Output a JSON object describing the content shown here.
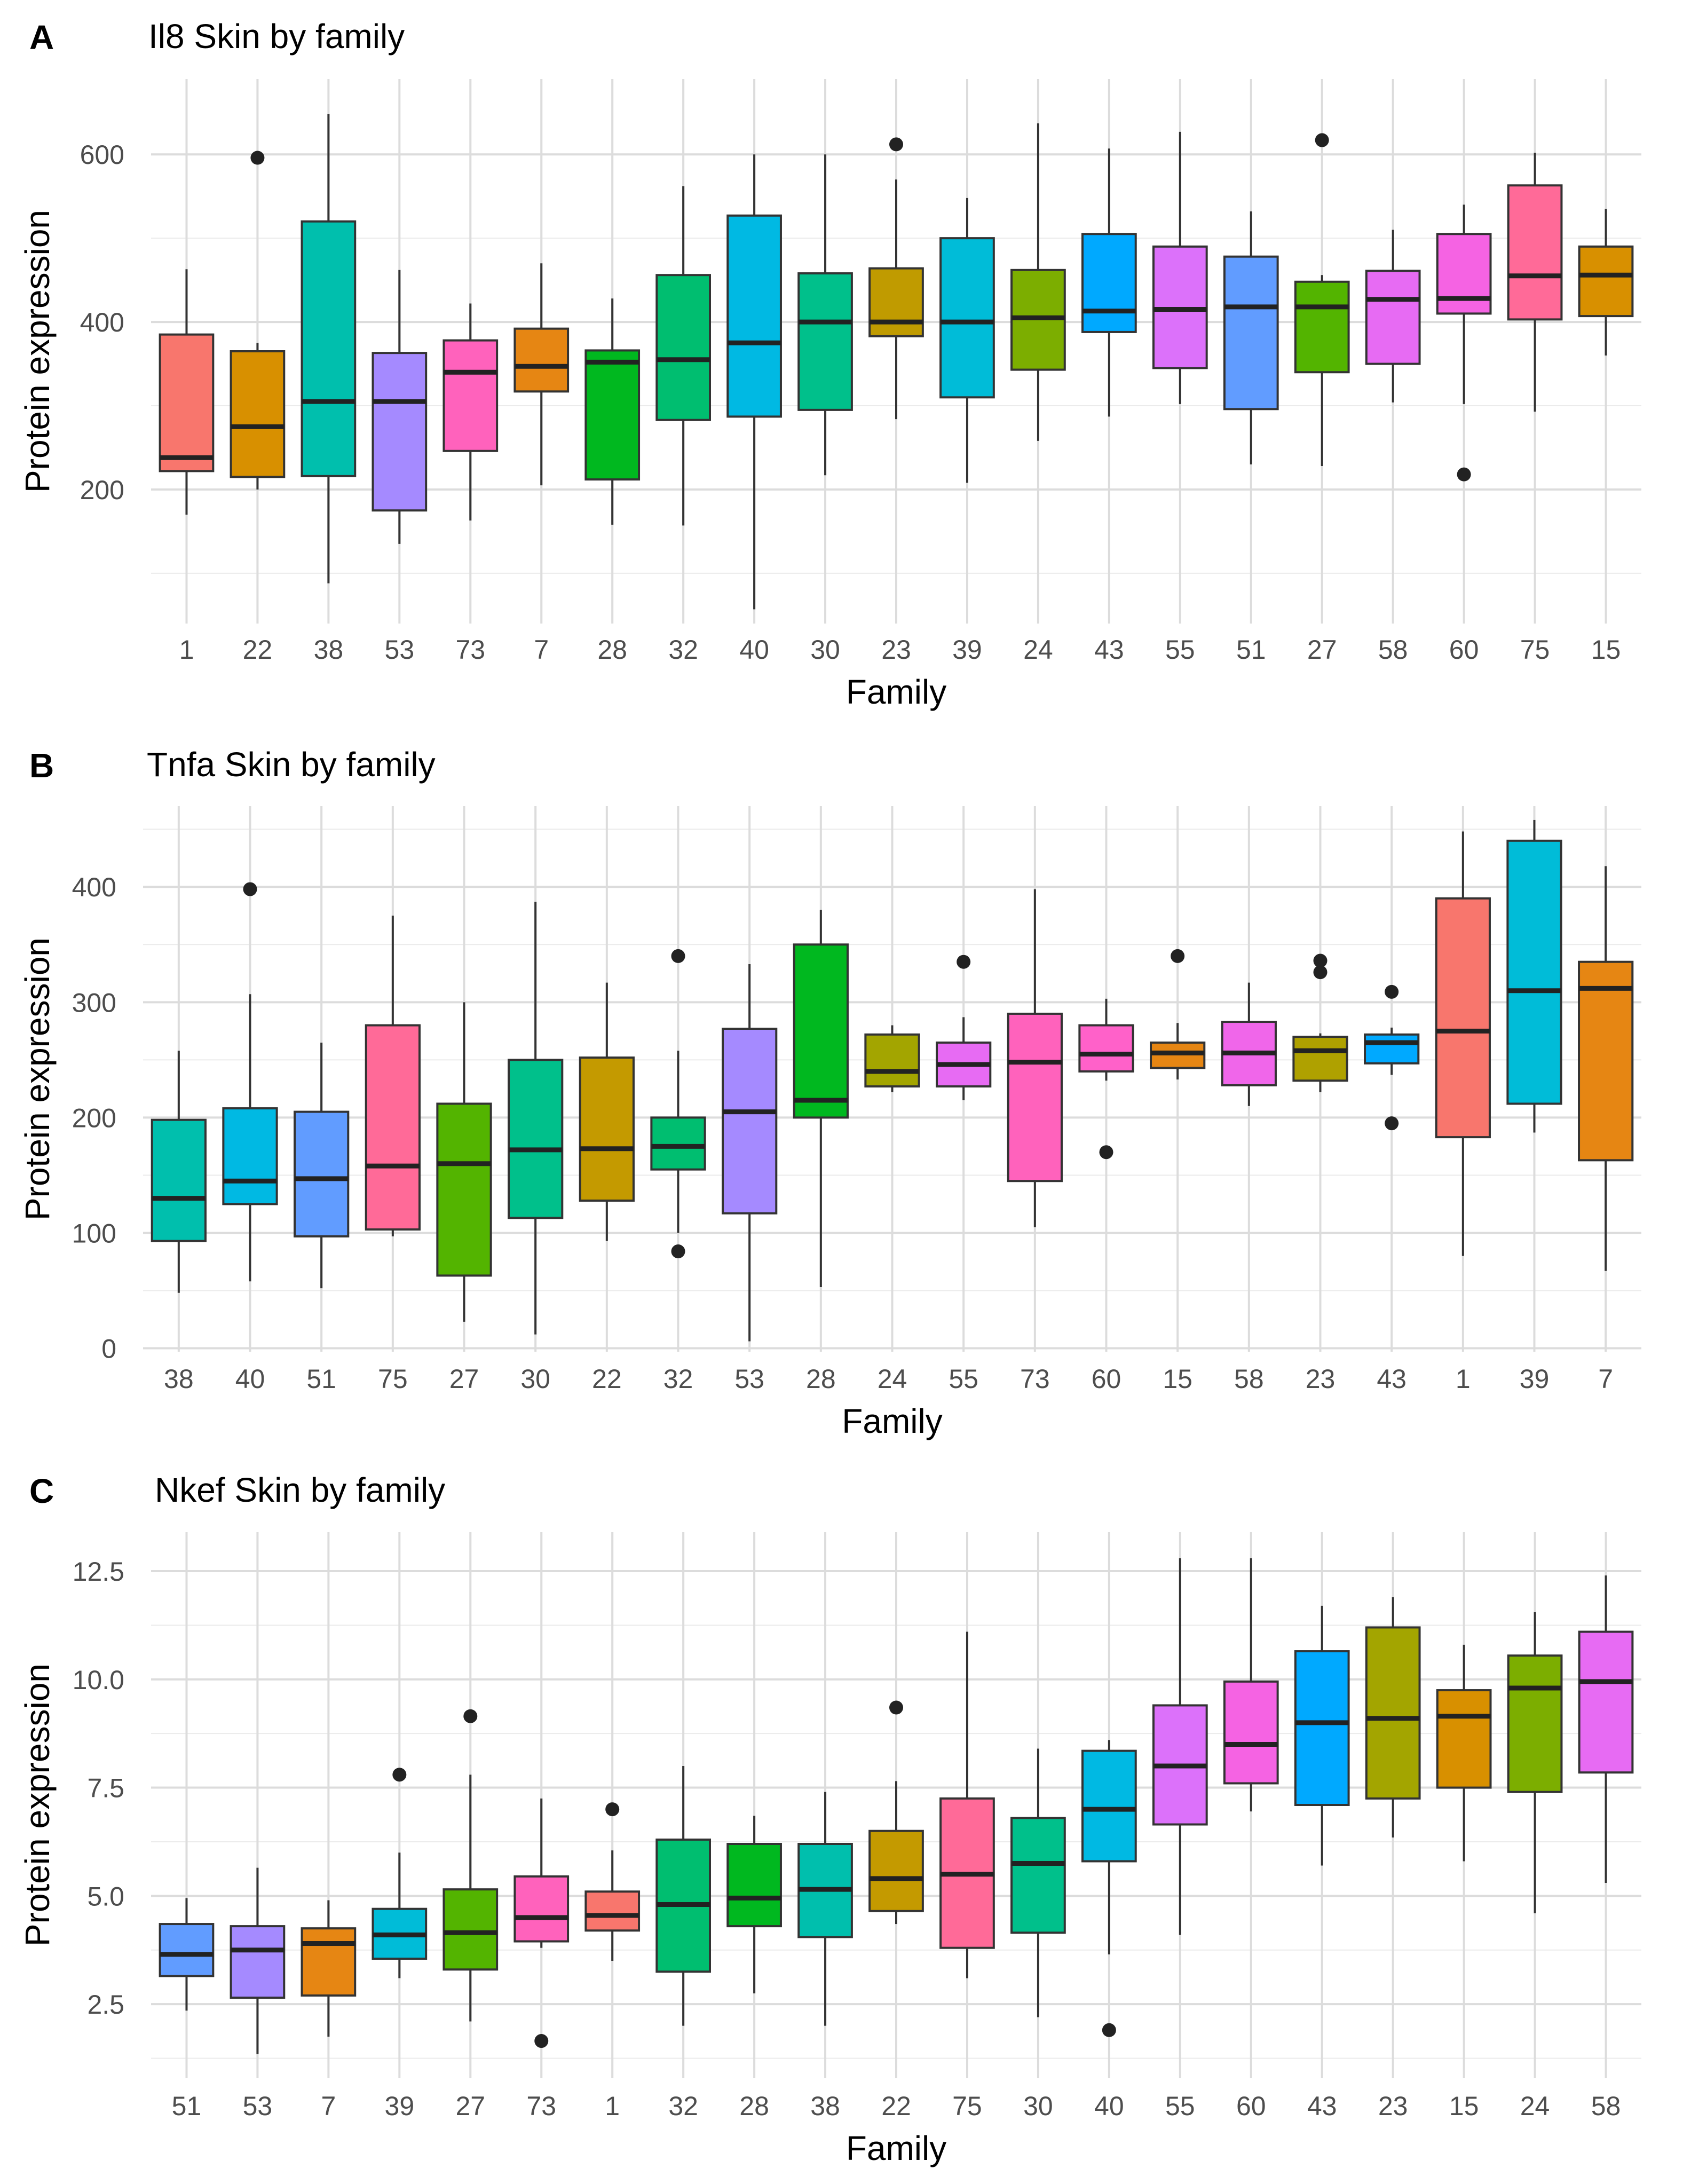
{
  "chart_data": [
    {
      "panel_letter": "A",
      "type": "boxplot",
      "title": "Il8 Skin by family",
      "xlabel": "Family",
      "ylabel": "Protein expression",
      "ylim": [
        40,
        690
      ],
      "yticks": [
        200,
        400,
        600
      ],
      "grid": "major and minor",
      "legend": "none",
      "categories": [
        "1",
        "22",
        "38",
        "53",
        "73",
        "7",
        "28",
        "32",
        "40",
        "30",
        "23",
        "39",
        "24",
        "43",
        "55",
        "51",
        "27",
        "58",
        "60",
        "75",
        "15"
      ],
      "colors": [
        "#F8766D",
        "#D89000",
        "#00BFAD",
        "#A58AFF",
        "#FF62BC",
        "#E68613",
        "#00B81F",
        "#00BE70",
        "#00B9E3",
        "#00C08B",
        "#C09B00",
        "#00BCD8",
        "#7CAE00",
        "#00A9FF",
        "#DC71FA",
        "#619CFF",
        "#53B400",
        "#E76BF3",
        "#F563E3",
        "#FF6A98",
        "#D89000"
      ],
      "boxes": [
        {
          "family": "1",
          "lower_whisker": 170,
          "q1": 222,
          "median": 238,
          "q3": 385,
          "upper_whisker": 463,
          "outliers": []
        },
        {
          "family": "22",
          "lower_whisker": 200,
          "q1": 215,
          "median": 275,
          "q3": 365,
          "upper_whisker": 375,
          "outliers": [
            596
          ]
        },
        {
          "family": "38",
          "lower_whisker": 88,
          "q1": 216,
          "median": 305,
          "q3": 520,
          "upper_whisker": 648,
          "outliers": []
        },
        {
          "family": "53",
          "lower_whisker": 135,
          "q1": 175,
          "median": 305,
          "q3": 363,
          "upper_whisker": 462,
          "outliers": []
        },
        {
          "family": "73",
          "lower_whisker": 163,
          "q1": 246,
          "median": 340,
          "q3": 378,
          "upper_whisker": 422,
          "outliers": []
        },
        {
          "family": "7",
          "lower_whisker": 205,
          "q1": 317,
          "median": 347,
          "q3": 392,
          "upper_whisker": 470,
          "outliers": []
        },
        {
          "family": "28",
          "lower_whisker": 158,
          "q1": 212,
          "median": 352,
          "q3": 366,
          "upper_whisker": 428,
          "outliers": []
        },
        {
          "family": "32",
          "lower_whisker": 157,
          "q1": 283,
          "median": 355,
          "q3": 456,
          "upper_whisker": 562,
          "outliers": []
        },
        {
          "family": "40",
          "lower_whisker": 57,
          "q1": 287,
          "median": 375,
          "q3": 527,
          "upper_whisker": 600,
          "outliers": []
        },
        {
          "family": "30",
          "lower_whisker": 217,
          "q1": 295,
          "median": 400,
          "q3": 458,
          "upper_whisker": 600,
          "outliers": []
        },
        {
          "family": "23",
          "lower_whisker": 284,
          "q1": 383,
          "median": 400,
          "q3": 464,
          "upper_whisker": 570,
          "outliers": [
            612
          ]
        },
        {
          "family": "39",
          "lower_whisker": 208,
          "q1": 310,
          "median": 400,
          "q3": 500,
          "upper_whisker": 548,
          "outliers": []
        },
        {
          "family": "24",
          "lower_whisker": 258,
          "q1": 343,
          "median": 405,
          "q3": 462,
          "upper_whisker": 637,
          "outliers": []
        },
        {
          "family": "43",
          "lower_whisker": 287,
          "q1": 388,
          "median": 413,
          "q3": 505,
          "upper_whisker": 607,
          "outliers": []
        },
        {
          "family": "55",
          "lower_whisker": 302,
          "q1": 345,
          "median": 415,
          "q3": 490,
          "upper_whisker": 627,
          "outliers": []
        },
        {
          "family": "51",
          "lower_whisker": 230,
          "q1": 296,
          "median": 418,
          "q3": 478,
          "upper_whisker": 532,
          "outliers": []
        },
        {
          "family": "27",
          "lower_whisker": 228,
          "q1": 340,
          "median": 418,
          "q3": 448,
          "upper_whisker": 456,
          "outliers": [
            617
          ]
        },
        {
          "family": "58",
          "lower_whisker": 304,
          "q1": 350,
          "median": 427,
          "q3": 461,
          "upper_whisker": 510,
          "outliers": []
        },
        {
          "family": "60",
          "lower_whisker": 302,
          "q1": 410,
          "median": 428,
          "q3": 505,
          "upper_whisker": 540,
          "outliers": [
            218
          ]
        },
        {
          "family": "75",
          "lower_whisker": 293,
          "q1": 403,
          "median": 455,
          "q3": 563,
          "upper_whisker": 602,
          "outliers": []
        },
        {
          "family": "15",
          "lower_whisker": 360,
          "q1": 407,
          "median": 456,
          "q3": 490,
          "upper_whisker": 535,
          "outliers": []
        }
      ]
    },
    {
      "panel_letter": "B",
      "type": "boxplot",
      "title": "Tnfa Skin by family",
      "xlabel": "Family",
      "ylabel": "Protein expression",
      "ylim": [
        -3,
        470
      ],
      "yticks": [
        0,
        100,
        200,
        300,
        400
      ],
      "grid": "major and minor",
      "legend": "none",
      "categories": [
        "38",
        "40",
        "51",
        "75",
        "27",
        "30",
        "22",
        "32",
        "53",
        "28",
        "24",
        "55",
        "73",
        "60",
        "15",
        "58",
        "23",
        "43",
        "1",
        "39",
        "7"
      ],
      "colors": [
        "#00BFAD",
        "#00B9E3",
        "#619CFF",
        "#FF6A98",
        "#53B400",
        "#00C08B",
        "#C49A00",
        "#00BE70",
        "#A58AFF",
        "#00B81F",
        "#A3A500",
        "#E76BF3",
        "#FF62BC",
        "#FF61C9",
        "#E68613",
        "#F066EA",
        "#AFA100",
        "#00A9FF",
        "#F8766D",
        "#00BCD8",
        "#E68613"
      ],
      "boxes": [
        {
          "family": "38",
          "lower_whisker": 48,
          "q1": 93,
          "median": 130,
          "q3": 198,
          "upper_whisker": 258,
          "outliers": []
        },
        {
          "family": "40",
          "lower_whisker": 58,
          "q1": 125,
          "median": 145,
          "q3": 208,
          "upper_whisker": 307,
          "outliers": [
            398
          ]
        },
        {
          "family": "51",
          "lower_whisker": 52,
          "q1": 97,
          "median": 147,
          "q3": 205,
          "upper_whisker": 265,
          "outliers": []
        },
        {
          "family": "75",
          "lower_whisker": 97,
          "q1": 103,
          "median": 158,
          "q3": 280,
          "upper_whisker": 375,
          "outliers": []
        },
        {
          "family": "27",
          "lower_whisker": 23,
          "q1": 63,
          "median": 160,
          "q3": 212,
          "upper_whisker": 300,
          "outliers": []
        },
        {
          "family": "30",
          "lower_whisker": 12,
          "q1": 113,
          "median": 172,
          "q3": 250,
          "upper_whisker": 387,
          "outliers": []
        },
        {
          "family": "22",
          "lower_whisker": 93,
          "q1": 128,
          "median": 173,
          "q3": 252,
          "upper_whisker": 317,
          "outliers": []
        },
        {
          "family": "32",
          "lower_whisker": 100,
          "q1": 155,
          "median": 175,
          "q3": 200,
          "upper_whisker": 258,
          "outliers": [
            84,
            340
          ]
        },
        {
          "family": "53",
          "lower_whisker": 6,
          "q1": 117,
          "median": 205,
          "q3": 277,
          "upper_whisker": 333,
          "outliers": []
        },
        {
          "family": "28",
          "lower_whisker": 53,
          "q1": 200,
          "median": 215,
          "q3": 350,
          "upper_whisker": 380,
          "outliers": []
        },
        {
          "family": "24",
          "lower_whisker": 222,
          "q1": 227,
          "median": 240,
          "q3": 272,
          "upper_whisker": 280,
          "outliers": []
        },
        {
          "family": "55",
          "lower_whisker": 215,
          "q1": 227,
          "median": 246,
          "q3": 265,
          "upper_whisker": 287,
          "outliers": [
            335
          ]
        },
        {
          "family": "73",
          "lower_whisker": 105,
          "q1": 145,
          "median": 248,
          "q3": 290,
          "upper_whisker": 398,
          "outliers": []
        },
        {
          "family": "60",
          "lower_whisker": 232,
          "q1": 240,
          "median": 255,
          "q3": 280,
          "upper_whisker": 303,
          "outliers": [
            170
          ]
        },
        {
          "family": "15",
          "lower_whisker": 233,
          "q1": 243,
          "median": 256,
          "q3": 265,
          "upper_whisker": 282,
          "outliers": [
            340
          ]
        },
        {
          "family": "58",
          "lower_whisker": 210,
          "q1": 228,
          "median": 256,
          "q3": 283,
          "upper_whisker": 317,
          "outliers": []
        },
        {
          "family": "23",
          "lower_whisker": 222,
          "q1": 232,
          "median": 258,
          "q3": 270,
          "upper_whisker": 273,
          "outliers": [
            326,
            336
          ]
        },
        {
          "family": "43",
          "lower_whisker": 237,
          "q1": 247,
          "median": 265,
          "q3": 272,
          "upper_whisker": 278,
          "outliers": [
            195,
            309
          ]
        },
        {
          "family": "1",
          "lower_whisker": 80,
          "q1": 183,
          "median": 275,
          "q3": 390,
          "upper_whisker": 448,
          "outliers": []
        },
        {
          "family": "39",
          "lower_whisker": 187,
          "q1": 212,
          "median": 310,
          "q3": 440,
          "upper_whisker": 458,
          "outliers": []
        },
        {
          "family": "7",
          "lower_whisker": 67,
          "q1": 163,
          "median": 312,
          "q3": 335,
          "upper_whisker": 418,
          "outliers": []
        }
      ]
    },
    {
      "panel_letter": "C",
      "type": "boxplot",
      "title": "Nkef Skin by family",
      "xlabel": "Family",
      "ylabel": "Protein expression",
      "ylim": [
        0.8,
        13.4
      ],
      "yticks": [
        2.5,
        5.0,
        7.5,
        10.0,
        12.5
      ],
      "ytick_labels": [
        "2.5",
        "5.0",
        "7.5",
        "10.0",
        "12.5"
      ],
      "grid": "major and minor",
      "legend": "none",
      "categories": [
        "51",
        "53",
        "7",
        "39",
        "27",
        "73",
        "1",
        "32",
        "28",
        "38",
        "22",
        "75",
        "30",
        "40",
        "55",
        "60",
        "43",
        "23",
        "15",
        "24",
        "58"
      ],
      "colors": [
        "#619CFF",
        "#A58AFF",
        "#E68613",
        "#00BCD8",
        "#53B400",
        "#FF62BC",
        "#F8766D",
        "#00BE70",
        "#00B81F",
        "#00BFAD",
        "#C49A00",
        "#FF6A98",
        "#00C08B",
        "#00B9E3",
        "#DC71FA",
        "#F563E3",
        "#00A9FF",
        "#A3A500",
        "#D89000",
        "#7CAE00",
        "#E76BF3"
      ],
      "boxes": [
        {
          "family": "51",
          "lower_whisker": 2.35,
          "q1": 3.15,
          "median": 3.65,
          "q3": 4.35,
          "upper_whisker": 4.95,
          "outliers": []
        },
        {
          "family": "53",
          "lower_whisker": 1.35,
          "q1": 2.65,
          "median": 3.75,
          "q3": 4.3,
          "upper_whisker": 5.65,
          "outliers": []
        },
        {
          "family": "7",
          "lower_whisker": 1.75,
          "q1": 2.7,
          "median": 3.9,
          "q3": 4.25,
          "upper_whisker": 4.9,
          "outliers": []
        },
        {
          "family": "39",
          "lower_whisker": 3.1,
          "q1": 3.55,
          "median": 4.1,
          "q3": 4.7,
          "upper_whisker": 6.0,
          "outliers": [
            7.8
          ]
        },
        {
          "family": "27",
          "lower_whisker": 2.1,
          "q1": 3.3,
          "median": 4.15,
          "q3": 5.15,
          "upper_whisker": 7.8,
          "outliers": [
            9.15
          ]
        },
        {
          "family": "73",
          "lower_whisker": 3.8,
          "q1": 3.95,
          "median": 4.5,
          "q3": 5.45,
          "upper_whisker": 7.25,
          "outliers": [
            1.65
          ]
        },
        {
          "family": "1",
          "lower_whisker": 3.5,
          "q1": 4.2,
          "median": 4.55,
          "q3": 5.1,
          "upper_whisker": 6.05,
          "outliers": [
            7.0
          ]
        },
        {
          "family": "32",
          "lower_whisker": 2.0,
          "q1": 3.25,
          "median": 4.8,
          "q3": 6.3,
          "upper_whisker": 8.0,
          "outliers": []
        },
        {
          "family": "28",
          "lower_whisker": 2.75,
          "q1": 4.3,
          "median": 4.95,
          "q3": 6.2,
          "upper_whisker": 6.85,
          "outliers": []
        },
        {
          "family": "38",
          "lower_whisker": 2.0,
          "q1": 4.05,
          "median": 5.15,
          "q3": 6.2,
          "upper_whisker": 7.4,
          "outliers": []
        },
        {
          "family": "22",
          "lower_whisker": 4.35,
          "q1": 4.65,
          "median": 5.4,
          "q3": 6.5,
          "upper_whisker": 7.65,
          "outliers": [
            9.35
          ]
        },
        {
          "family": "75",
          "lower_whisker": 3.1,
          "q1": 3.8,
          "median": 5.5,
          "q3": 7.25,
          "upper_whisker": 11.1,
          "outliers": []
        },
        {
          "family": "30",
          "lower_whisker": 2.2,
          "q1": 4.15,
          "median": 5.75,
          "q3": 6.8,
          "upper_whisker": 8.4,
          "outliers": []
        },
        {
          "family": "40",
          "lower_whisker": 3.65,
          "q1": 5.8,
          "median": 7.0,
          "q3": 8.35,
          "upper_whisker": 8.6,
          "outliers": [
            1.9
          ]
        },
        {
          "family": "55",
          "lower_whisker": 4.1,
          "q1": 6.65,
          "median": 8.0,
          "q3": 9.4,
          "upper_whisker": 12.8,
          "outliers": []
        },
        {
          "family": "60",
          "lower_whisker": 6.95,
          "q1": 7.6,
          "median": 8.5,
          "q3": 9.95,
          "upper_whisker": 12.8,
          "outliers": []
        },
        {
          "family": "43",
          "lower_whisker": 5.7,
          "q1": 7.1,
          "median": 9.0,
          "q3": 10.65,
          "upper_whisker": 11.7,
          "outliers": []
        },
        {
          "family": "23",
          "lower_whisker": 6.35,
          "q1": 7.25,
          "median": 9.1,
          "q3": 11.2,
          "upper_whisker": 11.9,
          "outliers": []
        },
        {
          "family": "15",
          "lower_whisker": 5.8,
          "q1": 7.5,
          "median": 9.15,
          "q3": 9.75,
          "upper_whisker": 10.8,
          "outliers": []
        },
        {
          "family": "24",
          "lower_whisker": 4.6,
          "q1": 7.4,
          "median": 9.8,
          "q3": 10.55,
          "upper_whisker": 11.55,
          "outliers": []
        },
        {
          "family": "58",
          "lower_whisker": 5.3,
          "q1": 7.85,
          "median": 9.95,
          "q3": 11.1,
          "upper_whisker": 12.4,
          "outliers": []
        }
      ]
    }
  ]
}
